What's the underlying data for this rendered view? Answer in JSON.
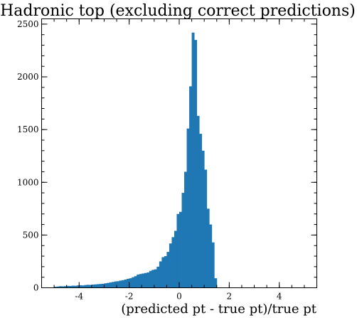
{
  "chart_data": {
    "type": "bar",
    "title": "Hadronic top (excluding correct predictions)",
    "xlabel": "(predicted pt - true pt)/true pt",
    "ylabel": "",
    "xlim": [
      -5.5,
      5.5
    ],
    "ylim": [
      0,
      2550
    ],
    "bar_color": "#1f77b4",
    "bin_width": 0.1,
    "xticks": [
      -4,
      -2,
      0,
      2,
      4
    ],
    "xtick_labels": [
      "-4",
      "-2",
      "0",
      "2",
      "4"
    ],
    "yticks": [
      0,
      500,
      1000,
      1500,
      2000,
      2500
    ],
    "ytick_labels": [
      "0",
      "500",
      "1000",
      "1500",
      "2000",
      "2500"
    ],
    "bin_edges_start": -5.0,
    "values": [
      10,
      12,
      15,
      14,
      16,
      18,
      17,
      20,
      19,
      22,
      24,
      22,
      26,
      28,
      27,
      30,
      32,
      34,
      36,
      38,
      42,
      46,
      50,
      55,
      60,
      62,
      68,
      72,
      78,
      85,
      90,
      100,
      110,
      125,
      130,
      135,
      140,
      145,
      160,
      170,
      175,
      200,
      250,
      290,
      300,
      340,
      420,
      480,
      540,
      700,
      720,
      900,
      1100,
      1510,
      1910,
      2420,
      2350,
      1630,
      1460,
      1300,
      1120,
      750,
      600,
      430,
      90,
      0,
      0,
      0,
      0,
      0
    ]
  }
}
